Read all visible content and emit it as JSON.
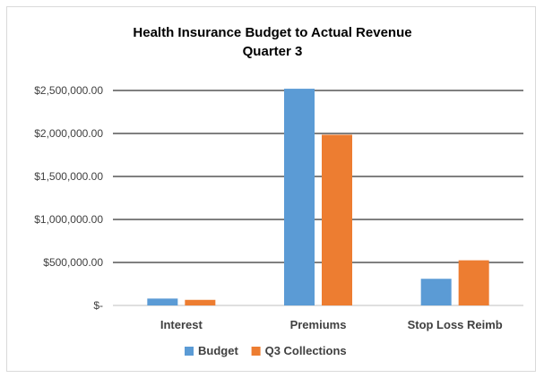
{
  "chart_data": {
    "type": "bar",
    "title_lines": [
      "Health Insurance Budget to Actual Revenue",
      "Quarter 3"
    ],
    "xlabel": "",
    "ylabel": "",
    "categories": [
      "Interest",
      "Premiums",
      "Stop Loss Reimb"
    ],
    "series": [
      {
        "name": "Budget",
        "color": "#5b9bd5",
        "values": [
          80000,
          2520000,
          310000
        ]
      },
      {
        "name": "Q3 Collections",
        "color": "#ed7d31",
        "values": [
          65000,
          1985000,
          525000
        ]
      }
    ],
    "ylim": [
      0,
      2500000
    ],
    "yticks": [
      0,
      500000,
      1000000,
      1500000,
      2000000,
      2500000
    ],
    "ytick_labels": [
      "$-",
      "$500,000.00",
      "$1,000,000.00",
      "$1,500,000.00",
      "$2,000,000.00",
      "$2,500,000.00"
    ],
    "grid": true,
    "legend_position": "bottom"
  }
}
